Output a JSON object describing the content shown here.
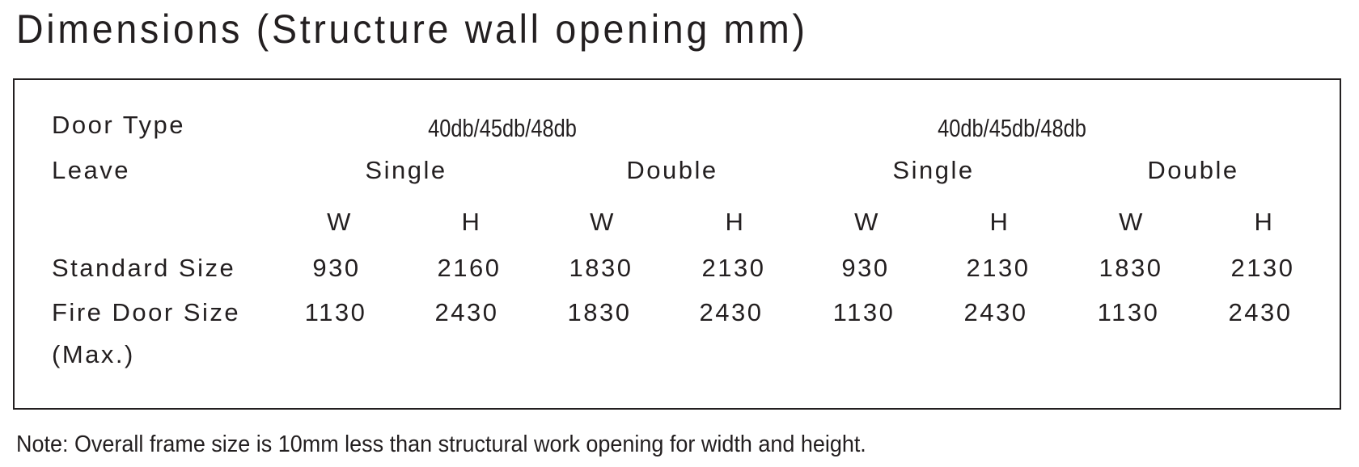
{
  "title": "Dimensions (Structure wall opening mm)",
  "table": {
    "door_type_label": "Door Type",
    "door_types": [
      "40db/45db/48db",
      "40db/45db/48db"
    ],
    "leave_label": "Leave",
    "leaves": [
      "Single",
      "Double",
      "Single",
      "Double"
    ],
    "subheaders": [
      "W",
      "H",
      "W",
      "H",
      "W",
      "H",
      "W",
      "H"
    ],
    "standard_label": "Standard Size",
    "standard_values": [
      "930",
      "2160",
      "1830",
      "2130",
      "930",
      "2130",
      "1830",
      "2130"
    ],
    "fire_label": "Fire Door Size",
    "fire_label_2": "(Max.)",
    "fire_values": [
      "1130",
      "2430",
      "1830",
      "2430",
      "1130",
      "2430",
      "1130",
      "2430"
    ]
  },
  "note": "Note: Overall frame size is 10mm less than structural work opening for width and height."
}
